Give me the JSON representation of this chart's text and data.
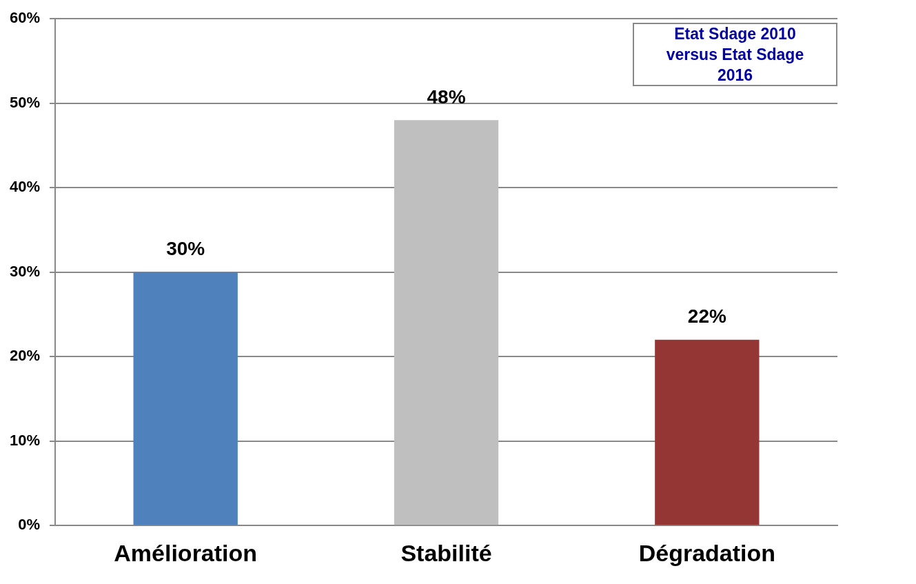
{
  "chart_data": {
    "type": "bar",
    "categories": [
      "Amélioration",
      "Stabilité",
      "Dégradation"
    ],
    "values": [
      30,
      48,
      22
    ],
    "colors": [
      "#4f81bd",
      "#bfbfbf",
      "#943634"
    ],
    "value_labels": [
      "30%",
      "48%",
      "22%"
    ],
    "ylim": [
      0,
      60
    ],
    "yticks": [
      {
        "value": 0,
        "label": "0%"
      },
      {
        "value": 10,
        "label": "10%"
      },
      {
        "value": 20,
        "label": "20%"
      },
      {
        "value": 30,
        "label": "30%"
      },
      {
        "value": 40,
        "label": "40%"
      },
      {
        "value": 50,
        "label": "50%"
      },
      {
        "value": 60,
        "label": "60%"
      }
    ],
    "grid": "y",
    "annotations": [
      "Etat Sdage 2010 versus Etat Sdage 2016"
    ]
  }
}
